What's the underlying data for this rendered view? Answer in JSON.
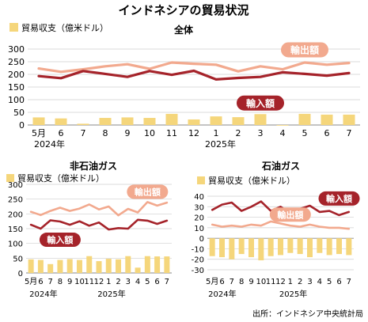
{
  "title": "インドネシアの貿易状況",
  "source": "出所：インドネシア中央統計局",
  "colors": {
    "bar": "#f5d67b",
    "export": "#f2a98e",
    "import": "#a5232a",
    "grid": "#cfcfcf"
  },
  "chart_data": [
    {
      "type": "line",
      "title": "全体",
      "bar_legend": "貿易収支（億米ドル）",
      "x_month_labels": [
        "5月",
        "6",
        "7",
        "8",
        "9",
        "10",
        "11",
        "12",
        "1",
        "2",
        "3",
        "4",
        "5",
        "6",
        "7"
      ],
      "x_year_labels": [
        "2024年",
        "2025年"
      ],
      "y_ticks": [
        0,
        50,
        100,
        150,
        200,
        250,
        300
      ],
      "ylim": [
        0,
        300
      ],
      "balance": [
        30,
        26,
        5,
        28,
        30,
        28,
        44,
        22,
        34,
        31,
        43,
        0,
        44,
        41,
        41
      ],
      "series": [
        {
          "name": "輸出額",
          "values": [
            223,
            210,
            220,
            232,
            240,
            222,
            247,
            242,
            238,
            212,
            232,
            220,
            247,
            238,
            245
          ]
        },
        {
          "name": "輸入額",
          "values": [
            193,
            185,
            213,
            202,
            190,
            213,
            198,
            214,
            180,
            186,
            190,
            208,
            202,
            195,
            205
          ]
        }
      ]
    },
    {
      "type": "line",
      "title": "非石油ガス",
      "bar_legend": "貿易収支（億米ドル）",
      "x_month_labels": [
        "5月",
        "6",
        "7",
        "8",
        "9",
        "10",
        "11",
        "12",
        "1",
        "2",
        "3",
        "4",
        "5",
        "6",
        "7"
      ],
      "x_year_labels": [
        "2024年",
        "2025年"
      ],
      "y_ticks": [
        0,
        50,
        100,
        150,
        200,
        250,
        300
      ],
      "ylim": [
        0,
        300
      ],
      "balance": [
        46,
        44,
        30,
        44,
        47,
        44,
        57,
        40,
        48,
        46,
        57,
        18,
        57,
        56,
        56
      ],
      "series": [
        {
          "name": "輸出額",
          "values": [
            207,
            196,
            210,
            221,
            210,
            218,
            232,
            215,
            225,
            195,
            217,
            205,
            240,
            228,
            238
          ]
        },
        {
          "name": "輸入額",
          "values": [
            163,
            150,
            178,
            174,
            163,
            175,
            160,
            171,
            147,
            152,
            150,
            180,
            177,
            166,
            177
          ]
        }
      ]
    },
    {
      "type": "line",
      "title": "石油ガス",
      "bar_legend": "貿易収支（億米ドル）",
      "x_month_labels": [
        "5月",
        "6",
        "7",
        "8",
        "9",
        "10",
        "11",
        "12",
        "1",
        "2",
        "3",
        "4",
        "5",
        "6",
        "7"
      ],
      "x_year_labels": [
        "2024年",
        "2025年"
      ],
      "y_ticks": [
        -30,
        -20,
        -10,
        0,
        10,
        20,
        30,
        40
      ],
      "ylim": [
        -30,
        40
      ],
      "balance": [
        -17,
        -18,
        -20,
        -15,
        -18,
        -21,
        -17,
        -16,
        -14,
        -15,
        -18,
        -14,
        -16,
        -15,
        -16
      ],
      "series": [
        {
          "name": "輸出額",
          "values": [
            13,
            11,
            12,
            11,
            13,
            12,
            16,
            14,
            12,
            11,
            13,
            11,
            10,
            10,
            9
          ]
        },
        {
          "name": "輸入額",
          "values": [
            27,
            32,
            34,
            26,
            30,
            35,
            26,
            30,
            24,
            28,
            31,
            25,
            26,
            22,
            25
          ]
        }
      ]
    }
  ]
}
